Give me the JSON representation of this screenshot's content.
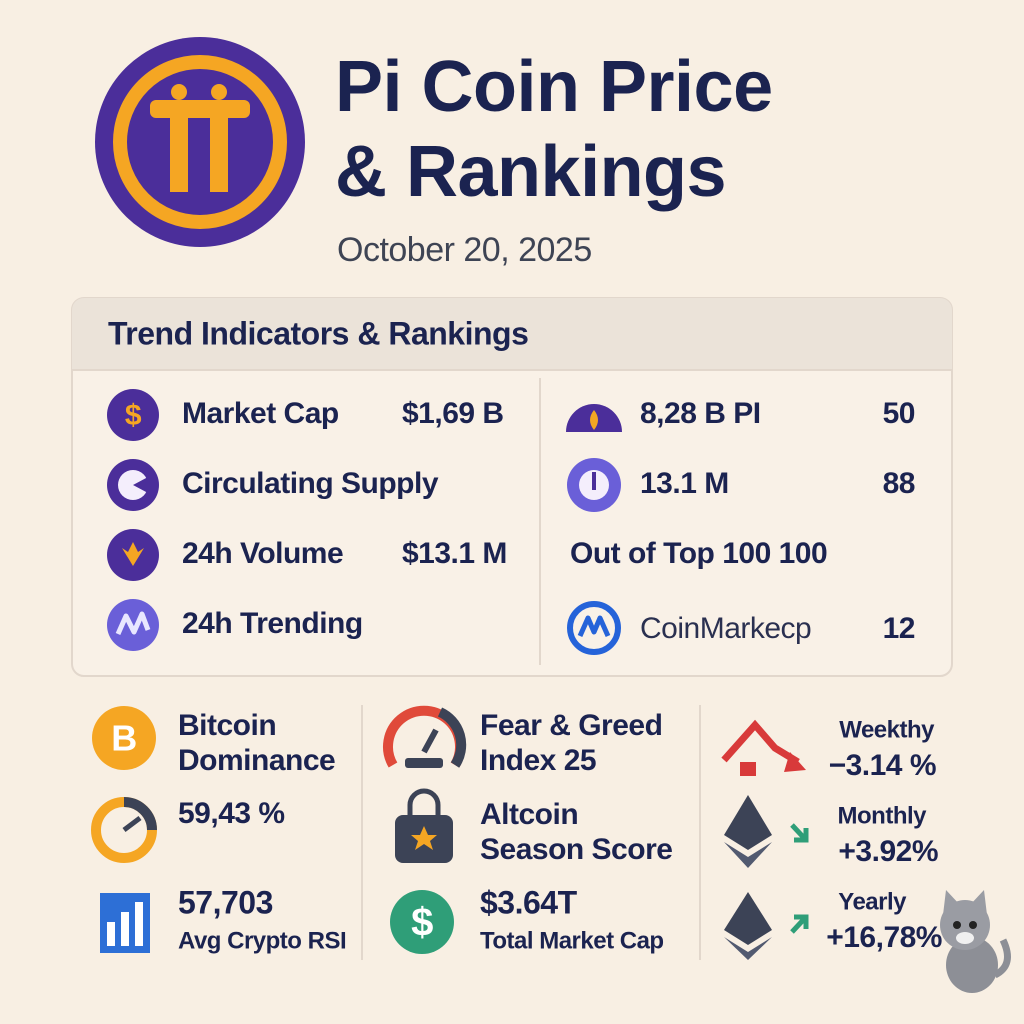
{
  "header": {
    "title": [
      "Pi Coin Price",
      "& Rankings"
    ],
    "date": "October 20, 2025"
  },
  "panel": {
    "title": "Trend Indicators & Rankings",
    "left": [
      {
        "label": "Market Cap",
        "value": "$1,69 B"
      },
      {
        "label": "Circulating Supply"
      },
      {
        "label": "24h Volume",
        "value": "$13.1 M"
      },
      {
        "label": "24h Trending"
      }
    ],
    "right": [
      {
        "label": "8,28 B PI",
        "value": "50"
      },
      {
        "label": "13.1 M",
        "value": "88"
      },
      {
        "label": "Out of Top 100 100"
      },
      {
        "label": "CoinMarkecp",
        "value": "12"
      }
    ]
  },
  "stats": {
    "bitcoin_dominance": {
      "label": [
        "Bitcoin",
        "Dominance"
      ],
      "value": "59,43 %"
    },
    "rsi": {
      "value": "57,703",
      "label": "Avg Crypto RSI"
    },
    "fear_greed": [
      "Fear & Greed",
      "Index 25"
    ],
    "altcoin": [
      "Altcoin",
      "Season Score"
    ],
    "market_cap": {
      "value": "$3.64T",
      "label": "Total Market Cap"
    },
    "changes": [
      {
        "period": "Weekthy",
        "value": "−3.14 %"
      },
      {
        "period": "Monthly",
        "value": "+3.92%"
      },
      {
        "period": "Yearly",
        "value": "+16,78%"
      }
    ]
  }
}
